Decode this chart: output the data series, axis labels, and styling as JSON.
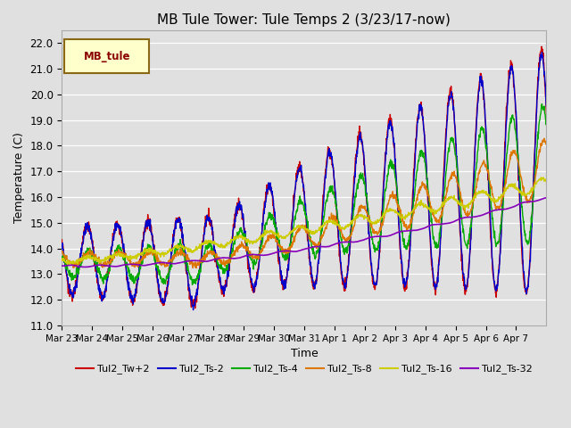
{
  "title": "MB Tule Tower: Tule Temps 2 (3/23/17-now)",
  "xlabel": "Time",
  "ylabel": "Temperature (C)",
  "ylim": [
    11.0,
    22.5
  ],
  "yticks": [
    11.0,
    12.0,
    13.0,
    14.0,
    15.0,
    16.0,
    17.0,
    18.0,
    19.0,
    20.0,
    21.0,
    22.0
  ],
  "bg_color": "#e0e0e0",
  "grid_color": "#ffffff",
  "series_colors": {
    "Tul2_Tw+2": "#cc0000",
    "Tul2_Ts-2": "#0000cc",
    "Tul2_Ts-4": "#00aa00",
    "Tul2_Ts-8": "#dd7700",
    "Tul2_Ts-16": "#cccc00",
    "Tul2_Ts-32": "#8800bb"
  },
  "x_tick_labels": [
    "Mar 23",
    "Mar 24",
    "Mar 25",
    "Mar 26",
    "Mar 27",
    "Mar 28",
    "Mar 29",
    "Mar 30",
    "Mar 31",
    "Apr 1",
    "Apr 2",
    "Apr 3",
    "Apr 4",
    "Apr 5",
    "Apr 6",
    "Apr 7"
  ],
  "figsize": [
    6.4,
    4.8
  ],
  "dpi": 100
}
